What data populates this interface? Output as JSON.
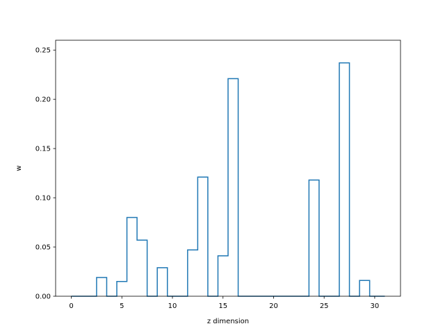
{
  "chart_data": {
    "type": "step",
    "title": "",
    "xlabel": "z dimension",
    "ylabel": "w",
    "xlim": [
      -1.55,
      32.55
    ],
    "ylim": [
      0,
      0.26
    ],
    "xticks": [
      0,
      5,
      10,
      15,
      20,
      25,
      30
    ],
    "xtick_labels": [
      "0",
      "5",
      "10",
      "15",
      "20",
      "25",
      "30"
    ],
    "yticks": [
      0.0,
      0.05,
      0.1,
      0.15,
      0.2,
      0.25
    ],
    "ytick_labels": [
      "0.00",
      "0.05",
      "0.10",
      "0.15",
      "0.20",
      "0.25"
    ],
    "grid": false,
    "line_color": "#1f77b4",
    "x": [
      0,
      1,
      2,
      3,
      4,
      5,
      6,
      7,
      8,
      9,
      10,
      11,
      12,
      13,
      14,
      15,
      16,
      17,
      18,
      19,
      20,
      21,
      22,
      23,
      24,
      25,
      26,
      27,
      28,
      29,
      30,
      31
    ],
    "values": [
      0,
      0,
      0,
      0.019,
      0,
      0.015,
      0.08,
      0.057,
      0,
      0.029,
      0,
      0,
      0.047,
      0.121,
      0,
      0.041,
      0.221,
      0,
      0,
      0,
      0,
      0,
      0,
      0,
      0.118,
      0,
      0,
      0.237,
      0,
      0.016,
      0,
      0
    ]
  }
}
